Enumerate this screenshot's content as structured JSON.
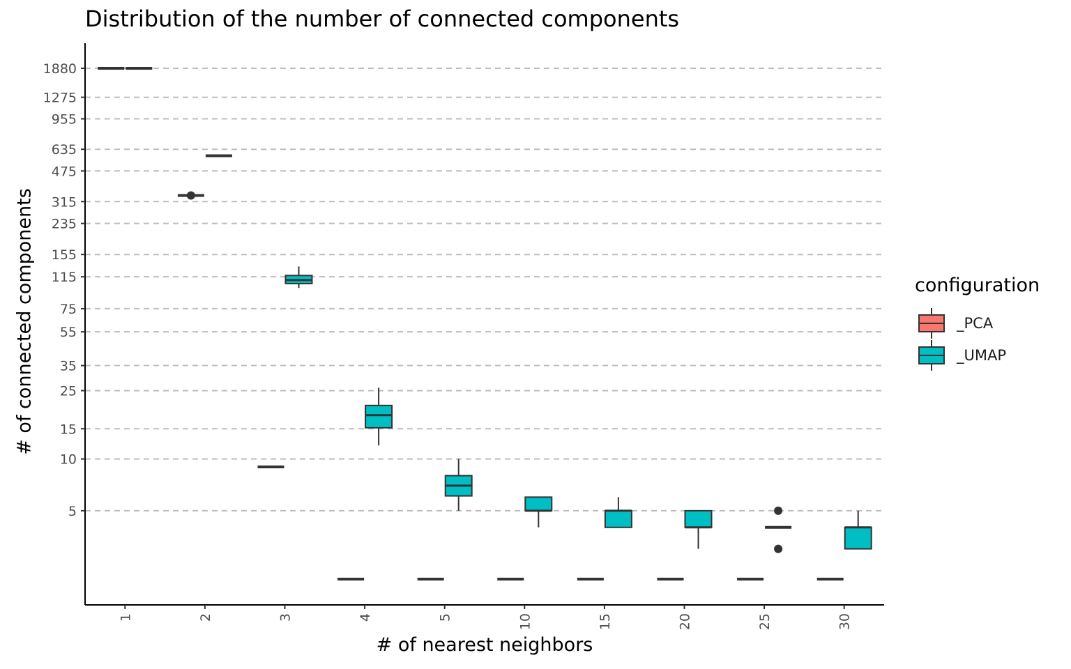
{
  "chart_data": {
    "type": "box",
    "title": "Distribution of the number of connected components",
    "xlabel": "# of nearest neighbors",
    "ylabel": "# of connected components",
    "y_scale": "log",
    "ylim": [
      1.5,
      2500
    ],
    "y_ticks": [
      5,
      10,
      15,
      25,
      35,
      55,
      75,
      115,
      155,
      235,
      315,
      475,
      635,
      955,
      1275,
      1880
    ],
    "grid": "horizontal dashed at y ticks",
    "legend_position": "right",
    "legend_title": "configuration",
    "categories": [
      "1",
      "2",
      "3",
      "4",
      "5",
      "10",
      "15",
      "20",
      "25",
      "30"
    ],
    "series": [
      {
        "name": "_PCA",
        "color": "#F8766D",
        "boxes": [
          {
            "x": "1",
            "min": 1880,
            "q1": 1880,
            "median": 1880,
            "q3": 1880,
            "max": 1880,
            "outliers": []
          },
          {
            "x": "2",
            "min": 342,
            "q1": 342,
            "median": 342,
            "q3": 342,
            "max": 342,
            "outliers": [
              342
            ]
          },
          {
            "x": "3",
            "min": 9,
            "q1": 9,
            "median": 9,
            "q3": 9,
            "max": 9,
            "outliers": []
          },
          {
            "x": "4",
            "min": 2,
            "q1": 2,
            "median": 2,
            "q3": 2,
            "max": 2,
            "outliers": []
          },
          {
            "x": "5",
            "min": 2,
            "q1": 2,
            "median": 2,
            "q3": 2,
            "max": 2,
            "outliers": []
          },
          {
            "x": "10",
            "min": 2,
            "q1": 2,
            "median": 2,
            "q3": 2,
            "max": 2,
            "outliers": []
          },
          {
            "x": "15",
            "min": 2,
            "q1": 2,
            "median": 2,
            "q3": 2,
            "max": 2,
            "outliers": []
          },
          {
            "x": "20",
            "min": 2,
            "q1": 2,
            "median": 2,
            "q3": 2,
            "max": 2,
            "outliers": []
          },
          {
            "x": "25",
            "min": 2,
            "q1": 2,
            "median": 2,
            "q3": 2,
            "max": 2,
            "outliers": []
          },
          {
            "x": "30",
            "min": 2,
            "q1": 2,
            "median": 2,
            "q3": 2,
            "max": 2,
            "outliers": []
          }
        ]
      },
      {
        "name": "_UMAP",
        "color": "#00BFC4",
        "boxes": [
          {
            "x": "1",
            "min": 1880,
            "q1": 1880,
            "median": 1880,
            "q3": 1880,
            "max": 1880,
            "outliers": []
          },
          {
            "x": "2",
            "min": 582,
            "q1": 582,
            "median": 582,
            "q3": 582,
            "max": 582,
            "outliers": []
          },
          {
            "x": "3",
            "min": 99,
            "q1": 105,
            "median": 110,
            "q3": 117,
            "max": 132,
            "outliers": []
          },
          {
            "x": "4",
            "min": 12,
            "q1": 15.2,
            "median": 18,
            "q3": 20.5,
            "max": 26,
            "outliers": []
          },
          {
            "x": "5",
            "min": 5,
            "q1": 6.1,
            "median": 7,
            "q3": 8,
            "max": 10,
            "outliers": []
          },
          {
            "x": "10",
            "min": 4,
            "q1": 5,
            "median": 5,
            "q3": 6,
            "max": 6,
            "outliers": []
          },
          {
            "x": "15",
            "min": 4,
            "q1": 4,
            "median": 5,
            "q3": 5,
            "max": 6,
            "outliers": []
          },
          {
            "x": "20",
            "min": 3,
            "q1": 4,
            "median": 4,
            "q3": 5,
            "max": 5,
            "outliers": []
          },
          {
            "x": "25",
            "min": 4,
            "q1": 4,
            "median": 4,
            "q3": 4,
            "max": 4,
            "outliers": [
              5,
              3
            ]
          },
          {
            "x": "30",
            "min": 3,
            "q1": 3,
            "median": 4,
            "q3": 4,
            "max": 5,
            "outliers": []
          }
        ]
      }
    ]
  }
}
